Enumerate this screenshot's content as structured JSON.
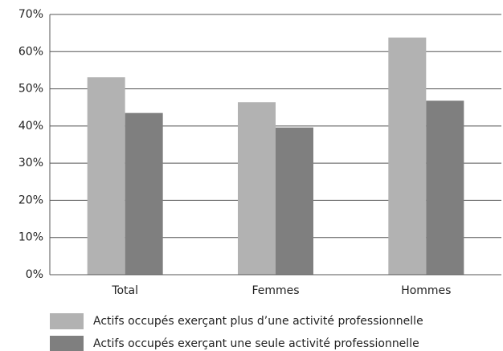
{
  "chart_data": {
    "type": "bar",
    "categories": [
      "Total",
      "Femmes",
      "Hommes"
    ],
    "series": [
      {
        "name": "Actifs occupés exerçant plus d’une activité professionnelle",
        "color": "#b2b2b2",
        "values": [
          53.1,
          46.4,
          63.8
        ]
      },
      {
        "name": "Actifs occupés exerçant une seule activité professionnelle",
        "color": "#7f7f7f",
        "values": [
          43.5,
          39.6,
          46.8
        ]
      }
    ],
    "ylim": [
      0,
      70
    ],
    "yticks": [
      {
        "value": 0,
        "label": "0%"
      },
      {
        "value": 10,
        "label": "10%"
      },
      {
        "value": 20,
        "label": "20%"
      },
      {
        "value": 30,
        "label": "30%"
      },
      {
        "value": 40,
        "label": "40%"
      },
      {
        "value": 50,
        "label": "50%"
      },
      {
        "value": 60,
        "label": "60%"
      },
      {
        "value": 70,
        "label": "70%"
      }
    ],
    "grid": true,
    "legend": "bottom"
  }
}
